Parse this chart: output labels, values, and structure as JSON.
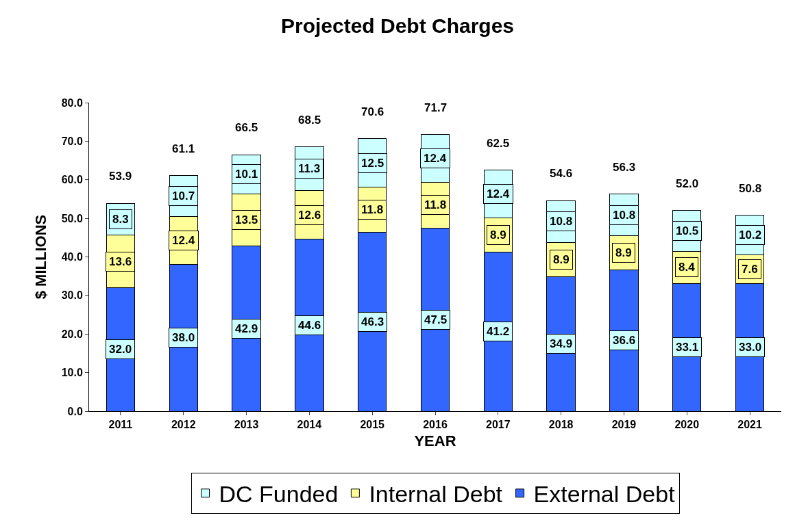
{
  "chart_data": {
    "type": "bar",
    "title": "Projected Debt Charges",
    "xlabel": "YEAR",
    "ylabel": "$ MILLIONS",
    "stacked": true,
    "categories": [
      "2011",
      "2012",
      "2013",
      "2014",
      "2015",
      "2016",
      "2017",
      "2018",
      "2019",
      "2020",
      "2021"
    ],
    "series": [
      {
        "name": "External Debt",
        "color": "#3366ff",
        "values": [
          32.0,
          38.0,
          42.9,
          44.6,
          46.3,
          47.5,
          41.2,
          34.9,
          36.6,
          33.1,
          33.0
        ],
        "value_labels": [
          "32.0",
          "38.0",
          "42.9",
          "44.6",
          "46.3",
          "47.5",
          "41.2",
          "34.9",
          "36.6",
          "33.1",
          "33.0"
        ]
      },
      {
        "name": "Internal Debt",
        "color": "#ffff99",
        "values": [
          13.6,
          12.4,
          13.5,
          12.6,
          11.8,
          11.8,
          8.9,
          8.9,
          8.9,
          8.4,
          7.6
        ],
        "value_labels": [
          "13.6",
          "12.4",
          "13.5",
          "12.6",
          "11.8",
          "11.8",
          "8.9",
          "8.9",
          "8.9",
          "8.4",
          "7.6"
        ]
      },
      {
        "name": "DC Funded",
        "color": "#ccffff",
        "values": [
          8.3,
          10.7,
          10.1,
          11.3,
          12.5,
          12.4,
          12.4,
          10.8,
          10.8,
          10.5,
          10.2
        ],
        "value_labels": [
          "8.3",
          "10.7",
          "10.1",
          "11.3",
          "12.5",
          "12.4",
          "12.4",
          "10.8",
          "10.8",
          "10.5",
          "10.2"
        ]
      }
    ],
    "totals": [
      "53.9",
      "61.1",
      "66.5",
      "68.5",
      "70.6",
      "71.7",
      "62.5",
      "54.6",
      "56.3",
      "52.0",
      "50.8"
    ],
    "ylim": [
      0,
      80
    ],
    "yticks": [
      {
        "value": 0,
        "label": "0.0"
      },
      {
        "value": 10,
        "label": "10.0"
      },
      {
        "value": 20,
        "label": "20.0"
      },
      {
        "value": 30,
        "label": "30.0"
      },
      {
        "value": 40,
        "label": "40.0"
      },
      {
        "value": 50,
        "label": "50.0"
      },
      {
        "value": 60,
        "label": "60.0"
      },
      {
        "value": 70,
        "label": "70.0"
      },
      {
        "value": 80,
        "label": "80.0"
      }
    ],
    "legend": "bottom"
  }
}
